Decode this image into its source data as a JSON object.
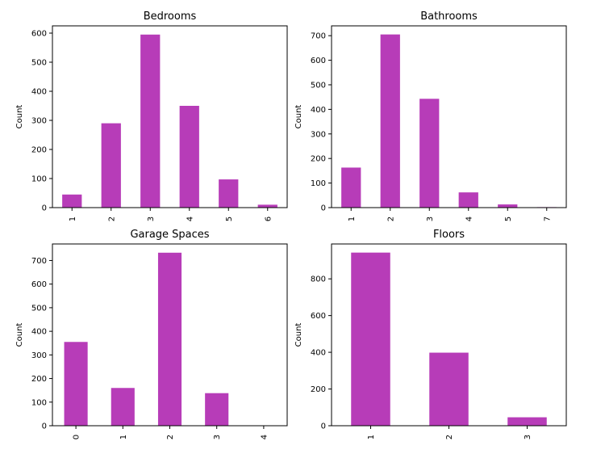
{
  "bar_color": "#b73cb8",
  "chart_data": [
    {
      "type": "bar",
      "title": "Bedrooms",
      "xlabel": "",
      "ylabel": "Count",
      "categories": [
        "1",
        "2",
        "3",
        "4",
        "5",
        "6"
      ],
      "values": [
        45,
        290,
        595,
        350,
        97,
        10
      ],
      "ylim": [
        0,
        625
      ],
      "yticks": [
        0,
        100,
        200,
        300,
        400,
        500,
        600
      ],
      "grid": false,
      "legend": "none"
    },
    {
      "type": "bar",
      "title": "Bathrooms",
      "xlabel": "",
      "ylabel": "Count",
      "categories": [
        "1",
        "2",
        "3",
        "4",
        "5",
        "7"
      ],
      "values": [
        163,
        705,
        443,
        62,
        13,
        2
      ],
      "ylim": [
        0,
        740
      ],
      "yticks": [
        0,
        100,
        200,
        300,
        400,
        500,
        600,
        700
      ],
      "grid": false,
      "legend": "none"
    },
    {
      "type": "bar",
      "title": "Garage Spaces",
      "xlabel": "",
      "ylabel": "Count",
      "categories": [
        "0",
        "1",
        "2",
        "3",
        "4"
      ],
      "values": [
        355,
        160,
        733,
        138,
        1
      ],
      "ylim": [
        0,
        770
      ],
      "yticks": [
        0,
        100,
        200,
        300,
        400,
        500,
        600,
        700
      ],
      "grid": false,
      "legend": "none"
    },
    {
      "type": "bar",
      "title": "Floors",
      "xlabel": "",
      "ylabel": "Count",
      "categories": [
        "1",
        "2",
        "3"
      ],
      "values": [
        943,
        398,
        46
      ],
      "ylim": [
        0,
        990
      ],
      "yticks": [
        0,
        200,
        400,
        600,
        800
      ],
      "grid": false,
      "legend": "none"
    }
  ]
}
